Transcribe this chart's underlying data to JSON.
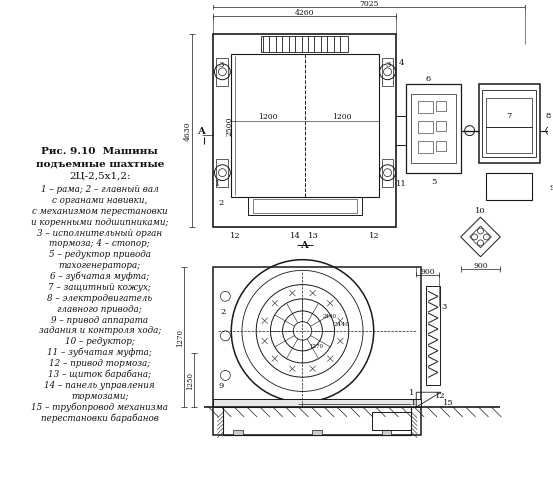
{
  "background_color": "#ffffff",
  "line_color": "#1a1a1a",
  "text_color": "#111111",
  "title_lines": [
    "Рис. 9.10  Машины",
    "подъемные шахтные",
    "2Ц-2,5х1,2:"
  ],
  "legend_lines": [
    "1 – рама; 2 – главный вал",
    "с органами навивки,",
    "с механизмом перестановки",
    "и коренными подшипниками;",
    "3 – исполнительный орган",
    "тормоза; 4 – стопор;",
    "5 – редуктор привода",
    "тахогенератора;",
    "6 – зубчатая муфта;",
    "7 – защитный кожух;",
    "8 – электродвигатель",
    "главного привода;",
    "9 – привод аппарата",
    "задания и контроля хода;",
    "10 – редуктор;",
    "11 – зубчатая муфта;",
    "12 – привод тормоза;",
    "13 – щиток барабана;",
    "14 – панель управления",
    "тормозами;",
    "15 – трубопровод механизма",
    "перестановки барабанов"
  ],
  "dim_7025": "7025",
  "dim_4260": "4260",
  "dim_1200a": "1200",
  "dim_1200b": "1200",
  "dim_4630": "4630",
  "dim_2500": "2500",
  "dim_900": "900",
  "dim_1250": "1250",
  "dim_1270": "1270"
}
